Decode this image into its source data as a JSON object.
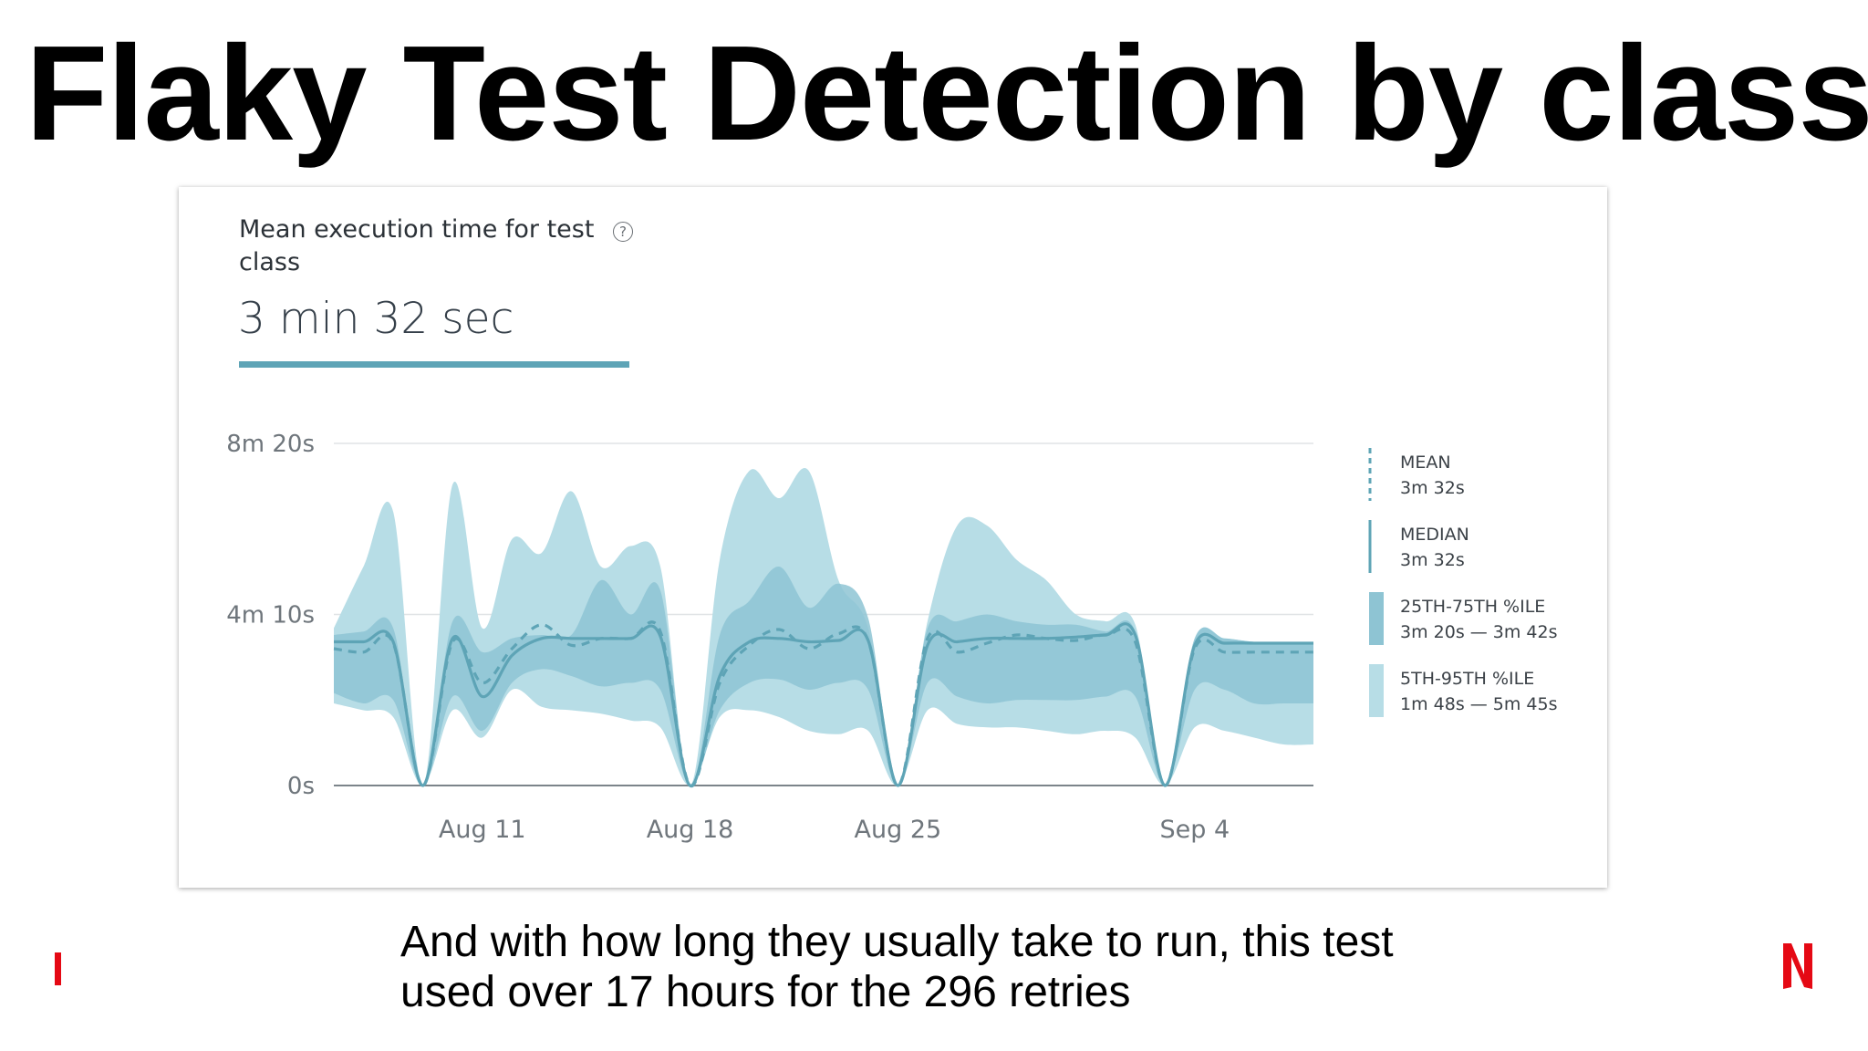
{
  "slide": {
    "title": "Flaky Test Detection by class",
    "caption_line1": "And with how long they usually take to run, this test",
    "caption_line2": "used over 17 hours for the 296 retries"
  },
  "card": {
    "metric_title": "Mean execution time for test class",
    "help_icon": "question-circle-icon",
    "help_glyph": "?",
    "metric_value": "3 min 32 sec"
  },
  "colors": {
    "band_outer": "#b7dde6",
    "band_inner": "#8ec4d3",
    "line": "#5ea4b6",
    "brand_red": "#e50914"
  },
  "chart_data": {
    "type": "area",
    "y_unit": "seconds",
    "ylim": [
      0,
      500
    ],
    "y_ticks": [
      {
        "value": 0,
        "label": "0s"
      },
      {
        "value": 250,
        "label": "4m 10s"
      },
      {
        "value": 500,
        "label": "8m 20s"
      }
    ],
    "xlim": [
      "2021-08-06",
      "2021-09-08"
    ],
    "x_ticks": [
      {
        "date": "2021-08-11",
        "label": "Aug 11"
      },
      {
        "date": "2021-08-18",
        "label": "Aug 18"
      },
      {
        "date": "2021-08-25",
        "label": "Aug 25"
      },
      {
        "date": "2021-09-04",
        "label": "Sep 4"
      }
    ],
    "grid": true,
    "legend_position": "right",
    "x": [
      "2021-08-06",
      "2021-08-07",
      "2021-08-08",
      "2021-08-09",
      "2021-08-10",
      "2021-08-11",
      "2021-08-12",
      "2021-08-13",
      "2021-08-14",
      "2021-08-15",
      "2021-08-16",
      "2021-08-17",
      "2021-08-18",
      "2021-08-19",
      "2021-08-20",
      "2021-08-21",
      "2021-08-22",
      "2021-08-23",
      "2021-08-24",
      "2021-08-25",
      "2021-08-26",
      "2021-08-27",
      "2021-08-28",
      "2021-08-29",
      "2021-08-30",
      "2021-08-31",
      "2021-09-01",
      "2021-09-02",
      "2021-09-03",
      "2021-09-04",
      "2021-09-05",
      "2021-09-06",
      "2021-09-07",
      "2021-09-08"
    ],
    "series": [
      {
        "name": "MEAN",
        "legend_value": "3m 32s",
        "style": "dashed",
        "values": [
          200,
          195,
          208,
          0,
          210,
          150,
          200,
          235,
          205,
          215,
          215,
          225,
          0,
          150,
          205,
          228,
          200,
          222,
          212,
          0,
          215,
          195,
          208,
          220,
          215,
          212,
          220,
          210,
          0,
          200,
          195,
          195,
          195,
          195
        ]
      },
      {
        "name": "MEDIAN",
        "legend_value": "3m 32s",
        "style": "solid",
        "values": [
          210,
          210,
          210,
          0,
          215,
          130,
          190,
          215,
          215,
          215,
          215,
          218,
          0,
          160,
          210,
          215,
          210,
          212,
          212,
          0,
          205,
          210,
          215,
          215,
          215,
          217,
          220,
          220,
          0,
          205,
          208,
          208,
          208,
          208
        ]
      },
      {
        "name": "25TH-75TH %ILE",
        "legend_value": "3m 20s — 3m 42s",
        "style": "band",
        "low": [
          135,
          120,
          125,
          0,
          130,
          80,
          150,
          170,
          160,
          145,
          150,
          140,
          0,
          110,
          150,
          155,
          140,
          150,
          140,
          0,
          150,
          130,
          120,
          125,
          125,
          125,
          130,
          130,
          0,
          140,
          140,
          120,
          120,
          120
        ],
        "high": [
          220,
          225,
          230,
          0,
          240,
          195,
          215,
          220,
          220,
          300,
          250,
          285,
          0,
          220,
          270,
          320,
          260,
          295,
          245,
          0,
          230,
          240,
          250,
          240,
          235,
          235,
          225,
          225,
          0,
          215,
          215,
          210,
          210,
          210
        ]
      },
      {
        "name": "5TH-95TH %ILE",
        "legend_value": "1m 48s — 5m 45s",
        "style": "band",
        "low": [
          120,
          110,
          100,
          0,
          110,
          70,
          140,
          115,
          110,
          105,
          95,
          85,
          0,
          100,
          110,
          100,
          80,
          75,
          80,
          0,
          110,
          90,
          85,
          85,
          80,
          75,
          80,
          70,
          0,
          85,
          80,
          70,
          60,
          60
        ],
        "high": [
          230,
          320,
          400,
          0,
          440,
          230,
          360,
          340,
          430,
          320,
          350,
          320,
          0,
          330,
          460,
          420,
          460,
          300,
          230,
          0,
          240,
          380,
          380,
          330,
          300,
          250,
          240,
          235,
          0,
          215,
          215,
          210,
          210,
          210
        ]
      }
    ]
  }
}
